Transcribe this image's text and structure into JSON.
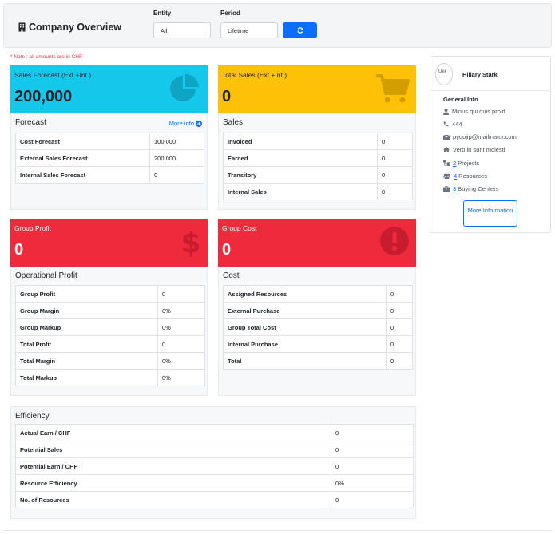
{
  "header": {
    "title": "Company Overview",
    "entity_label": "Entity",
    "entity_value": "All",
    "period_label": "Period",
    "period_value": "Lifetime",
    "refresh_icon": "refresh-icon"
  },
  "note": "* Note : all amounts are in CHF",
  "colors": {
    "cyan": "#16c7ec",
    "yellow": "#ffc107",
    "red": "#f02a3d",
    "blue": "#0d6efd"
  },
  "sales_forecast_tile": {
    "label": "Sales Forecast (Ext.+Int.)",
    "value": "200,000",
    "icon": "pie-chart-icon"
  },
  "total_sales_tile": {
    "label": "Total Sales (Ext.+Int.)",
    "value": "0",
    "icon": "shopping-cart-icon"
  },
  "group_profit_tile": {
    "label": "Group Profit",
    "value": "0",
    "icon": "dollar-icon"
  },
  "group_cost_tile": {
    "label": "Group Cost",
    "value": "0",
    "icon": "exclamation-circle-icon"
  },
  "forecast": {
    "title": "Forecast",
    "more": "More info",
    "rows": [
      {
        "k": "Cost Forecast",
        "v": "100,000"
      },
      {
        "k": "External Sales Forecast",
        "v": "200,000"
      },
      {
        "k": "Internal Sales Forecast",
        "v": "0"
      }
    ]
  },
  "sales": {
    "title": "Sales",
    "rows": [
      {
        "k": "Invoiced",
        "v": "0"
      },
      {
        "k": "Earned",
        "v": "0"
      },
      {
        "k": "Transitory",
        "v": "0"
      },
      {
        "k": "Internal Sales",
        "v": "0"
      }
    ]
  },
  "operational_profit": {
    "title": "Operational Profit",
    "rows": [
      {
        "k": "Group Profit",
        "v": "0"
      },
      {
        "k": "Group Margin",
        "v": "0%"
      },
      {
        "k": "Group Markup",
        "v": "0%"
      },
      {
        "k": "Total Profit",
        "v": "0"
      },
      {
        "k": "Total Margin",
        "v": "0%"
      },
      {
        "k": "Total Markup",
        "v": "0%"
      }
    ]
  },
  "cost": {
    "title": "Cost",
    "rows": [
      {
        "k": "Assigned Resources",
        "v": "0"
      },
      {
        "k": "External Purchase",
        "v": "0"
      },
      {
        "k": "Group Total Cost",
        "v": "0"
      },
      {
        "k": "Internal Purchase",
        "v": "0"
      },
      {
        "k": "Total",
        "v": "0"
      }
    ]
  },
  "efficiency": {
    "title": "Efficiency",
    "rows": [
      {
        "k": "Actual Earn / CHF",
        "v": "0"
      },
      {
        "k": "Potential Sales",
        "v": "0"
      },
      {
        "k": "Potential Earn / CHF",
        "v": "0"
      },
      {
        "k": "Resource Efficiency",
        "v": "0%"
      },
      {
        "k": "No. of Resources",
        "v": "0"
      }
    ]
  },
  "profile": {
    "avatar_alt": "Uer",
    "name": "Hillary Stark",
    "general_info": "General Info",
    "position": "Minus qui quis proid",
    "phone": "444",
    "email": "pyqojip@mailinator.com",
    "address": "Vero in sunt molesti",
    "projects_count": "2",
    "projects_label": "Projects",
    "resources_count": "4",
    "resources_label": "Resources",
    "buying_count": "3",
    "buying_label": "Buying Centers",
    "more_button": "More Information"
  }
}
